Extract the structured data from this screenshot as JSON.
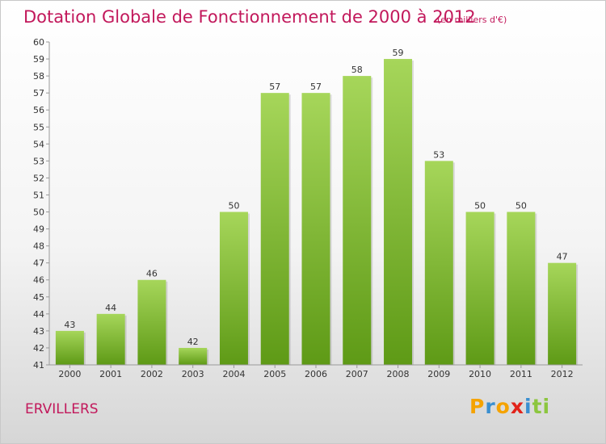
{
  "title": "Dotation Globale de Fonctionnement de 2000 à 2012",
  "subtitle": "(en milliers d'€)",
  "commune": "ERVILLERS",
  "logo": {
    "letters": [
      "P",
      "r",
      "o",
      "x",
      "i",
      "t",
      "i"
    ],
    "colors": [
      "#f5a300",
      "#3a8fd0",
      "#f5a300",
      "#e2231a",
      "#3a8fd0",
      "#8cc63f",
      "#8cc63f"
    ]
  },
  "colors": {
    "bar_top": "#a6d65a",
    "bar_bottom": "#5e9a16",
    "text_accent": "#c2185b"
  },
  "chart_data": {
    "type": "bar",
    "categories": [
      "2000",
      "2001",
      "2002",
      "2003",
      "2004",
      "2005",
      "2006",
      "2007",
      "2008",
      "2009",
      "2010",
      "2011",
      "2012"
    ],
    "values": [
      43,
      44,
      46,
      42,
      50,
      57,
      57,
      58,
      59,
      53,
      50,
      50,
      47
    ],
    "yticks": [
      "41",
      "42",
      "43",
      "44",
      "45",
      "46",
      "47",
      "48",
      "49",
      "50",
      "51",
      "52",
      "53",
      "54",
      "55",
      "56",
      "57",
      "58",
      "59",
      "60"
    ],
    "ylim": [
      41,
      60
    ],
    "grid": false,
    "legend": "none"
  }
}
